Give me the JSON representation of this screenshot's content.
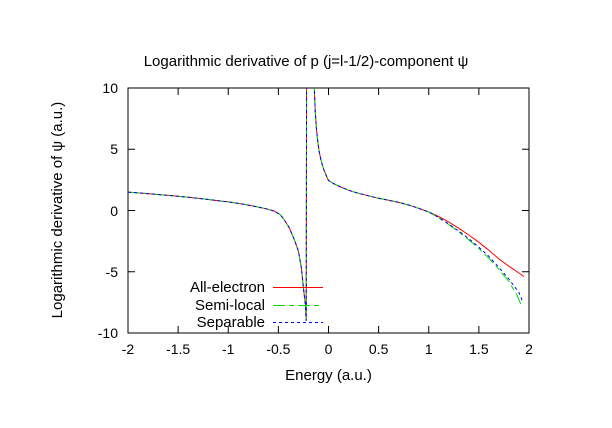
{
  "chart_data": {
    "type": "line",
    "title": "Logarithmic derivative of p (j=l-1/2)-component ψ",
    "xlabel": "Energy (a.u.)",
    "ylabel": "Logarithmic derivative of ψ (a.u.)",
    "xlim": [
      -2,
      2
    ],
    "ylim": [
      -10,
      10
    ],
    "xticks": [
      {
        "v": -2,
        "label": "-2"
      },
      {
        "v": -1.5,
        "label": "-1.5"
      },
      {
        "v": -1,
        "label": "-1"
      },
      {
        "v": -0.5,
        "label": "-0.5"
      },
      {
        "v": 0,
        "label": "0"
      },
      {
        "v": 0.5,
        "label": "0.5"
      },
      {
        "v": 1,
        "label": "1"
      },
      {
        "v": 1.5,
        "label": "1.5"
      },
      {
        "v": 2,
        "label": "2"
      }
    ],
    "yticks": [
      {
        "v": 10,
        "label": "10"
      },
      {
        "v": 5,
        "label": "5"
      },
      {
        "v": 0,
        "label": "0"
      },
      {
        "v": -5,
        "label": "-5"
      },
      {
        "v": -10,
        "label": "-10"
      }
    ],
    "grid": false,
    "background": "#ffffff",
    "frame_color": "#000000",
    "legend_position": "inside-bottom-center",
    "pole_x": -0.22,
    "series": [
      {
        "name": "All-electron",
        "color": "#ff0000",
        "dash": "solid",
        "points": [
          [
            -2,
            1.5
          ],
          [
            -1.85,
            1.41
          ],
          [
            -1.7,
            1.31
          ],
          [
            -1.55,
            1.2
          ],
          [
            -1.4,
            1.08
          ],
          [
            -1.25,
            0.95
          ],
          [
            -1.1,
            0.8
          ],
          [
            -1,
            0.7
          ],
          [
            -0.9,
            0.58
          ],
          [
            -0.8,
            0.44
          ],
          [
            -0.7,
            0.28
          ],
          [
            -0.62,
            0.14
          ],
          [
            -0.54,
            -0.05
          ],
          [
            -0.48,
            -0.35
          ],
          [
            -0.44,
            -0.78
          ],
          [
            -0.39,
            -1.43
          ],
          [
            -0.34,
            -2.4
          ],
          [
            -0.3,
            -3.3
          ],
          [
            -0.27,
            -4.7
          ],
          [
            -0.25,
            -6.3
          ],
          [
            -0.23,
            -7.7
          ],
          [
            -0.222,
            -9
          ],
          [
            -0.218,
            12
          ],
          [
            -0.148,
            12
          ],
          [
            -0.14,
            9.5
          ],
          [
            -0.132,
            8
          ],
          [
            -0.122,
            6.8
          ],
          [
            -0.11,
            5.8
          ],
          [
            -0.095,
            4.9
          ],
          [
            -0.075,
            4.1
          ],
          [
            -0.05,
            3.4
          ],
          [
            -0.02,
            2.8
          ],
          [
            0,
            2.45
          ],
          [
            0.05,
            2.2
          ],
          [
            0.1,
            2
          ],
          [
            0.15,
            1.82
          ],
          [
            0.2,
            1.66
          ],
          [
            0.25,
            1.52
          ],
          [
            0.3,
            1.4
          ],
          [
            0.4,
            1.2
          ],
          [
            0.5,
            1
          ],
          [
            0.6,
            0.84
          ],
          [
            0.7,
            0.66
          ],
          [
            0.8,
            0.45
          ],
          [
            0.9,
            0.18
          ],
          [
            1,
            -0.12
          ],
          [
            1.1,
            -0.5
          ],
          [
            1.2,
            -0.95
          ],
          [
            1.3,
            -1.45
          ],
          [
            1.4,
            -2
          ],
          [
            1.5,
            -2.6
          ],
          [
            1.6,
            -3.25
          ],
          [
            1.7,
            -3.95
          ],
          [
            1.8,
            -4.55
          ],
          [
            1.9,
            -5.1
          ],
          [
            1.95,
            -5.4
          ]
        ]
      },
      {
        "name": "Semi-local",
        "color": "#00dd00",
        "dash": "dash-dot",
        "points": [
          [
            -2,
            1.5
          ],
          [
            -1.85,
            1.41
          ],
          [
            -1.7,
            1.31
          ],
          [
            -1.55,
            1.2
          ],
          [
            -1.4,
            1.08
          ],
          [
            -1.25,
            0.95
          ],
          [
            -1.1,
            0.8
          ],
          [
            -1,
            0.7
          ],
          [
            -0.9,
            0.58
          ],
          [
            -0.8,
            0.44
          ],
          [
            -0.7,
            0.28
          ],
          [
            -0.62,
            0.14
          ],
          [
            -0.54,
            -0.05
          ],
          [
            -0.48,
            -0.35
          ],
          [
            -0.44,
            -0.78
          ],
          [
            -0.39,
            -1.43
          ],
          [
            -0.34,
            -2.4
          ],
          [
            -0.3,
            -3.3
          ],
          [
            -0.27,
            -4.7
          ],
          [
            -0.25,
            -6.3
          ],
          [
            -0.23,
            -7.7
          ],
          [
            -0.222,
            -9
          ],
          [
            -0.218,
            12
          ],
          [
            -0.148,
            12
          ],
          [
            -0.14,
            9.5
          ],
          [
            -0.132,
            8
          ],
          [
            -0.122,
            6.8
          ],
          [
            -0.11,
            5.8
          ],
          [
            -0.095,
            4.9
          ],
          [
            -0.075,
            4.1
          ],
          [
            -0.05,
            3.4
          ],
          [
            -0.02,
            2.8
          ],
          [
            0,
            2.45
          ],
          [
            0.05,
            2.2
          ],
          [
            0.1,
            2
          ],
          [
            0.15,
            1.82
          ],
          [
            0.2,
            1.66
          ],
          [
            0.25,
            1.52
          ],
          [
            0.3,
            1.4
          ],
          [
            0.4,
            1.2
          ],
          [
            0.5,
            1
          ],
          [
            0.6,
            0.84
          ],
          [
            0.7,
            0.66
          ],
          [
            0.8,
            0.45
          ],
          [
            0.9,
            0.18
          ],
          [
            1,
            -0.12
          ],
          [
            1.1,
            -0.6
          ],
          [
            1.2,
            -1.15
          ],
          [
            1.3,
            -1.75
          ],
          [
            1.4,
            -2.4
          ],
          [
            1.5,
            -3.1
          ],
          [
            1.6,
            -3.9
          ],
          [
            1.7,
            -4.8
          ],
          [
            1.8,
            -5.8
          ],
          [
            1.88,
            -6.9
          ],
          [
            1.93,
            -7.9
          ]
        ]
      },
      {
        "name": "Separable",
        "color": "#0000ff",
        "dash": "dotted",
        "points": [
          [
            -2,
            1.5
          ],
          [
            -1.85,
            1.41
          ],
          [
            -1.7,
            1.31
          ],
          [
            -1.55,
            1.2
          ],
          [
            -1.4,
            1.08
          ],
          [
            -1.25,
            0.95
          ],
          [
            -1.1,
            0.8
          ],
          [
            -1,
            0.7
          ],
          [
            -0.9,
            0.58
          ],
          [
            -0.8,
            0.44
          ],
          [
            -0.7,
            0.28
          ],
          [
            -0.62,
            0.14
          ],
          [
            -0.54,
            -0.05
          ],
          [
            -0.48,
            -0.35
          ],
          [
            -0.44,
            -0.78
          ],
          [
            -0.39,
            -1.43
          ],
          [
            -0.34,
            -2.4
          ],
          [
            -0.3,
            -3.3
          ],
          [
            -0.27,
            -4.7
          ],
          [
            -0.25,
            -6.3
          ],
          [
            -0.23,
            -7.7
          ],
          [
            -0.222,
            -9
          ],
          [
            -0.218,
            12
          ],
          [
            -0.148,
            12
          ],
          [
            -0.14,
            9.5
          ],
          [
            -0.132,
            8
          ],
          [
            -0.122,
            6.8
          ],
          [
            -0.11,
            5.8
          ],
          [
            -0.095,
            4.9
          ],
          [
            -0.075,
            4.1
          ],
          [
            -0.05,
            3.4
          ],
          [
            -0.02,
            2.8
          ],
          [
            0,
            2.45
          ],
          [
            0.05,
            2.2
          ],
          [
            0.1,
            2
          ],
          [
            0.15,
            1.82
          ],
          [
            0.2,
            1.66
          ],
          [
            0.25,
            1.52
          ],
          [
            0.3,
            1.4
          ],
          [
            0.4,
            1.2
          ],
          [
            0.5,
            1
          ],
          [
            0.6,
            0.84
          ],
          [
            0.7,
            0.66
          ],
          [
            0.8,
            0.45
          ],
          [
            0.9,
            0.18
          ],
          [
            1,
            -0.12
          ],
          [
            1.1,
            -0.57
          ],
          [
            1.2,
            -1.1
          ],
          [
            1.3,
            -1.68
          ],
          [
            1.4,
            -2.3
          ],
          [
            1.5,
            -3
          ],
          [
            1.6,
            -3.75
          ],
          [
            1.7,
            -4.65
          ],
          [
            1.8,
            -5.6
          ],
          [
            1.9,
            -6.7
          ],
          [
            1.94,
            -7.5
          ]
        ]
      }
    ]
  }
}
